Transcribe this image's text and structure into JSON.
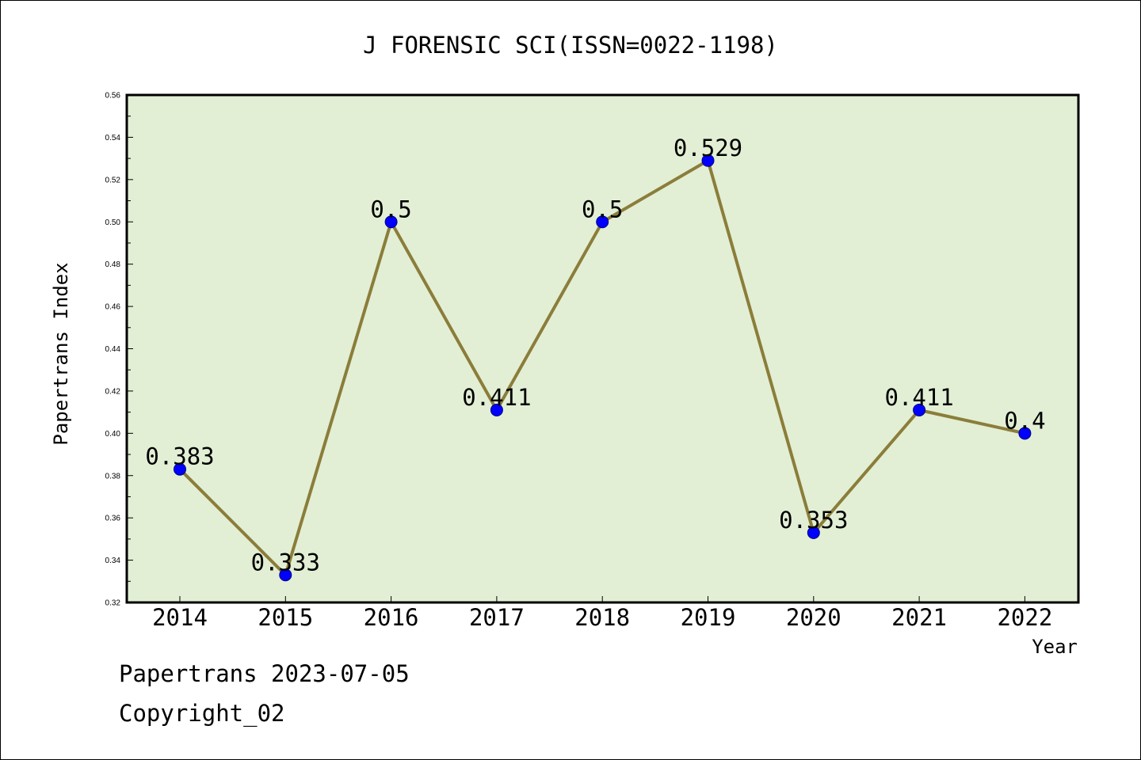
{
  "chart_data": {
    "type": "line",
    "title": "J FORENSIC SCI(ISSN=0022-1198)",
    "xlabel": "Year",
    "ylabel": "Papertrans Index",
    "categories": [
      "2014",
      "2015",
      "2016",
      "2017",
      "2018",
      "2019",
      "2020",
      "2021",
      "2022"
    ],
    "series": [
      {
        "values": [
          0.383,
          0.333,
          0.5,
          0.411,
          0.5,
          0.529,
          0.353,
          0.411,
          0.4
        ]
      }
    ],
    "data_labels": [
      "0.383",
      "0.333",
      "0.5",
      "0.411",
      "0.5",
      "0.529",
      "0.353",
      "0.411",
      "0.4"
    ],
    "ylim": [
      0.32,
      0.56
    ],
    "yticks": [
      "0.32",
      "0.34",
      "0.36",
      "0.38",
      "0.40",
      "0.42",
      "0.44",
      "0.46",
      "0.48",
      "0.50",
      "0.52",
      "0.54",
      "0.56"
    ],
    "grid": false,
    "legend": "none",
    "colors": {
      "line": "#8b7d3a",
      "marker_fill": "#0000ff",
      "marker_stroke": "#000080",
      "plot_background": "#e2efd5"
    }
  },
  "footer": {
    "date_line": "Papertrans 2023-07-05",
    "copyright_line": "Copyright_02"
  }
}
